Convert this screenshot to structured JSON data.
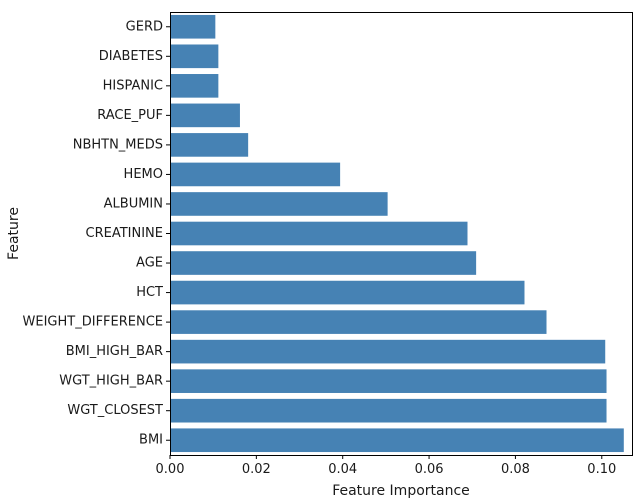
{
  "chart_data": {
    "type": "bar",
    "orientation": "horizontal",
    "xlabel": "Feature Importance",
    "ylabel": "Feature",
    "xlim": [
      0,
      0.107
    ],
    "xticks": [
      0.0,
      0.02,
      0.04,
      0.06,
      0.08,
      0.1
    ],
    "xtick_labels": [
      "0.00",
      "0.02",
      "0.04",
      "0.06",
      "0.08",
      "0.10"
    ],
    "grid": false,
    "bar_color": "#4682b4",
    "categories": [
      "GERD",
      "DIABETES",
      "HISPANIC",
      "RACE_PUF",
      "NBHTN_MEDS",
      "HEMO",
      "ALBUMIN",
      "CREATININE",
      "AGE",
      "HCT",
      "WEIGHT_DIFFERENCE",
      "BMI_HIGH_BAR",
      "WGT_HIGH_BAR",
      "WGT_CLOSEST",
      "BMI"
    ],
    "values": [
      0.0105,
      0.0112,
      0.0112,
      0.0162,
      0.0181,
      0.0394,
      0.0504,
      0.0689,
      0.0709,
      0.0821,
      0.0872,
      0.1008,
      0.1011,
      0.1011,
      0.1051
    ]
  }
}
